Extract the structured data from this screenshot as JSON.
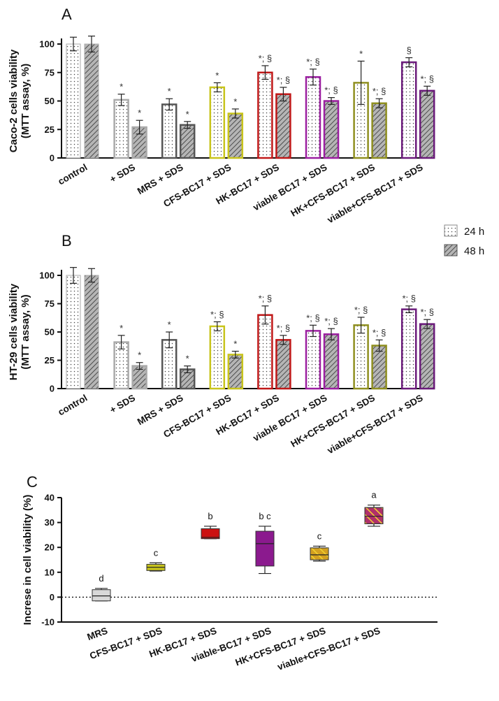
{
  "chart_data": [
    {
      "panel": "A",
      "type": "bar",
      "ylabel_line1": "Caco-2 cells viability",
      "ylabel_line2": "(MTT assay, %)",
      "ylim": [
        0,
        100
      ],
      "yticks": [
        "0",
        "25",
        "50",
        "75",
        "100"
      ],
      "categories": [
        "control",
        "+ SDS",
        "MRS + SDS",
        "CFS-BC17 + SDS",
        "HK-BC17 + SDS",
        "viable BC17 + SDS",
        "HK+CFS-BC17 + SDS",
        "viable+CFS-BC17 + SDS"
      ],
      "colors": [
        "#aaaaaa",
        "#aaaaaa",
        "#555555",
        "#c8c41c",
        "#c01818",
        "#9b1fa0",
        "#8f8f20",
        "#6a1a7a"
      ],
      "series": [
        {
          "name": "24 h",
          "values": [
            100,
            51,
            47,
            62,
            75,
            71,
            66,
            84
          ],
          "errors": [
            6,
            5,
            5,
            4,
            6,
            7,
            19,
            4
          ],
          "annotations": [
            "",
            "*",
            "*",
            "*",
            "*; §",
            "*; §",
            "*",
            "§"
          ]
        },
        {
          "name": "48 h",
          "values": [
            100,
            27,
            29,
            39,
            56,
            50,
            48,
            59
          ],
          "errors": [
            7,
            6,
            3,
            4,
            6,
            3,
            4,
            4
          ],
          "annotations": [
            "",
            "*",
            "*",
            "*",
            "*; §",
            "*; §",
            "*; §",
            "*; §"
          ]
        }
      ]
    },
    {
      "panel": "B",
      "type": "bar",
      "ylabel_line1": "HT-29 cells viability",
      "ylabel_line2": "(MTT assay, %)",
      "ylim": [
        0,
        100
      ],
      "yticks": [
        "0",
        "25",
        "50",
        "75",
        "100"
      ],
      "categories": [
        "control",
        "+ SDS",
        "MRS + SDS",
        "CFS-BC17 + SDS",
        "HK-BC17 + SDS",
        "viable BC17 + SDS",
        "HK+CFS-BC17 + SDS",
        "viable+CFS-BC17 + SDS"
      ],
      "colors": [
        "#aaaaaa",
        "#aaaaaa",
        "#555555",
        "#c8c41c",
        "#c01818",
        "#9b1fa0",
        "#8f8f20",
        "#6a1a7a"
      ],
      "series": [
        {
          "name": "24 h",
          "values": [
            100,
            41,
            43,
            55,
            65,
            51,
            56,
            70
          ],
          "errors": [
            7,
            6,
            7,
            4,
            8,
            5,
            7,
            3
          ],
          "annotations": [
            "",
            "*",
            "*",
            "*; §",
            "*; §",
            "*; §",
            "*; §",
            "*; §"
          ]
        },
        {
          "name": "48 h",
          "values": [
            100,
            20,
            17,
            30,
            43,
            48,
            38,
            57
          ],
          "errors": [
            6,
            3,
            3,
            3,
            4,
            5,
            5,
            4
          ],
          "annotations": [
            "",
            "*",
            "*",
            "*",
            "*; §",
            "*; §",
            "*; §",
            "*; §"
          ]
        }
      ]
    },
    {
      "panel": "C",
      "type": "box",
      "ylabel": "Increse in cell viability (%)",
      "ylim": [
        -10,
        40
      ],
      "yticks": [
        "-10",
        "0",
        "10",
        "20",
        "30",
        "40"
      ],
      "categories": [
        "MRS",
        "CFS-BC17 + SDS",
        "HK-BC17 + SDS",
        "viable-BC17 + SDS",
        "HK+CFS-BC17 + SDS",
        "viable+CFS-BC17 + SDS"
      ],
      "boxes": [
        {
          "min": -1.5,
          "q1": -1.5,
          "median": 0.5,
          "q3": 3,
          "max": 3.5,
          "group": "d",
          "fill": "#d8d8d8"
        },
        {
          "min": 10.5,
          "q1": 10.7,
          "median": 12,
          "q3": 13.2,
          "max": 13.8,
          "group": "c",
          "fill": "#c8c41c"
        },
        {
          "min": 23.5,
          "q1": 23.5,
          "median": 24,
          "q3": 27.5,
          "max": 28.5,
          "group": "b",
          "fill": "#cc1111"
        },
        {
          "min": 9.5,
          "q1": 12.5,
          "median": 21.5,
          "q3": 26.5,
          "max": 28.5,
          "group": "b c",
          "fill": "#8b1a8e"
        },
        {
          "min": 14.5,
          "q1": 15,
          "median": 17,
          "q3": 19.8,
          "max": 20.5,
          "group": "c",
          "fill": "#d4a020"
        },
        {
          "min": 28.5,
          "q1": 29.5,
          "median": 32.5,
          "q3": 36,
          "max": 37,
          "group": "a",
          "fill": "#b0306a"
        }
      ],
      "reference_line": 0
    }
  ],
  "legend": [
    {
      "label": "24 h",
      "pattern": "dots"
    },
    {
      "label": "48 h",
      "pattern": "hatch"
    }
  ]
}
